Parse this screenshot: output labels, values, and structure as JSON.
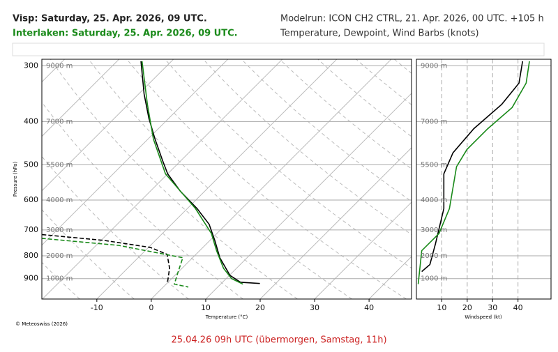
{
  "header": {
    "left": [
      "Visp: Saturday, 25. Apr. 2026, 09 UTC.",
      "Interlaken: Saturday, 25. Apr. 2026, 09 UTC."
    ],
    "right": [
      "Modelrun: ICON CH2 CTRL, 21. Apr. 2026, 00 UTC. +105 h",
      "Temperature, Dewpoint, Wind Barbs (knots)"
    ]
  },
  "footer": {
    "copyright": "© Meteoswiss (2026)",
    "caption": "25.04.26 09h UTC (übermorgen, Samstag, 11h)"
  },
  "height_labels": [
    "9000 m",
    "7000 m",
    "5500 m",
    "4000 m",
    "3000 m",
    "2000 m",
    "1000 m"
  ],
  "chart_data": [
    {
      "type": "skewt",
      "x_label": "Temperature (°C)",
      "y_label": "Pressure (hPa)",
      "xlim": [
        -20.1,
        47.8
      ],
      "xticks": [
        -10,
        0,
        10,
        20,
        30,
        40
      ],
      "ylim": [
        1000,
        290
      ],
      "yticks": [
        300,
        400,
        500,
        600,
        700,
        800,
        900
      ],
      "log_y": true,
      "series": [
        {
          "name": "Interlaken temperature",
          "color": "#000000",
          "dash": false,
          "pressure": [
            923,
            917,
            885,
            808,
            739,
            680,
            627,
            573,
            524,
            488,
            438,
            393,
            347,
            293
          ],
          "values": [
            17.1,
            13.3,
            10.1,
            5.0,
            0.9,
            -3.1,
            -8.2,
            -14.5,
            -20.0,
            -23.5,
            -28.7,
            -33.7,
            -39.0,
            -45.6
          ]
        },
        {
          "name": "Interlaken dewpoint",
          "color": "#1a8a1a",
          "dash": false,
          "pressure": [
            926,
            900,
            853,
            779,
            713,
            627,
            524,
            438,
            366,
            293
          ],
          "values": [
            14.1,
            11.0,
            7.6,
            3.1,
            -1.0,
            -8.5,
            -20.4,
            -29.0,
            -36.5,
            -45.4
          ]
        },
        {
          "name": "Visp temperature",
          "color": "#000000",
          "dash": true,
          "pressure": [
            717,
            739,
            766,
            794,
            853,
            917
          ],
          "values": [
            -31.9,
            -19.4,
            -9.7,
            -5.3,
            -2.3,
            -0.1
          ]
        },
        {
          "name": "Visp dewpoint",
          "color": "#1a8a1a",
          "dash": true,
          "pressure": [
            731,
            758,
            808,
            875,
            926,
            940
          ],
          "values": [
            -31.3,
            -15.9,
            -1.8,
            0.1,
            1.5,
            4.6
          ]
        }
      ]
    },
    {
      "type": "profile",
      "x_label": "Windspeed (kt)",
      "xlim": [
        0,
        53
      ],
      "xticks": [
        10,
        20,
        30,
        40
      ],
      "ylim": [
        1000,
        290
      ],
      "yticks": [
        300,
        400,
        500,
        600,
        700,
        800,
        900
      ],
      "log_y": true,
      "series": [
        {
          "name": "Visp windspeed",
          "color": "#000000",
          "pressure": [
            868,
            837,
            752,
            627,
            524,
            470,
            415,
            366,
            328,
            293
          ],
          "values": [
            2.1,
            5.3,
            7.5,
            10.8,
            10.8,
            14.4,
            22.6,
            33.6,
            40.4,
            41.8
          ]
        },
        {
          "name": "Interlaken windspeed",
          "color": "#1a8a1a",
          "pressure": [
            926,
            779,
            713,
            627,
            505,
            462,
            415,
            372,
            328,
            293
          ],
          "values": [
            0.7,
            2.1,
            8.9,
            13.0,
            15.8,
            19.9,
            28.1,
            37.7,
            43.2,
            44.5
          ]
        }
      ]
    }
  ]
}
